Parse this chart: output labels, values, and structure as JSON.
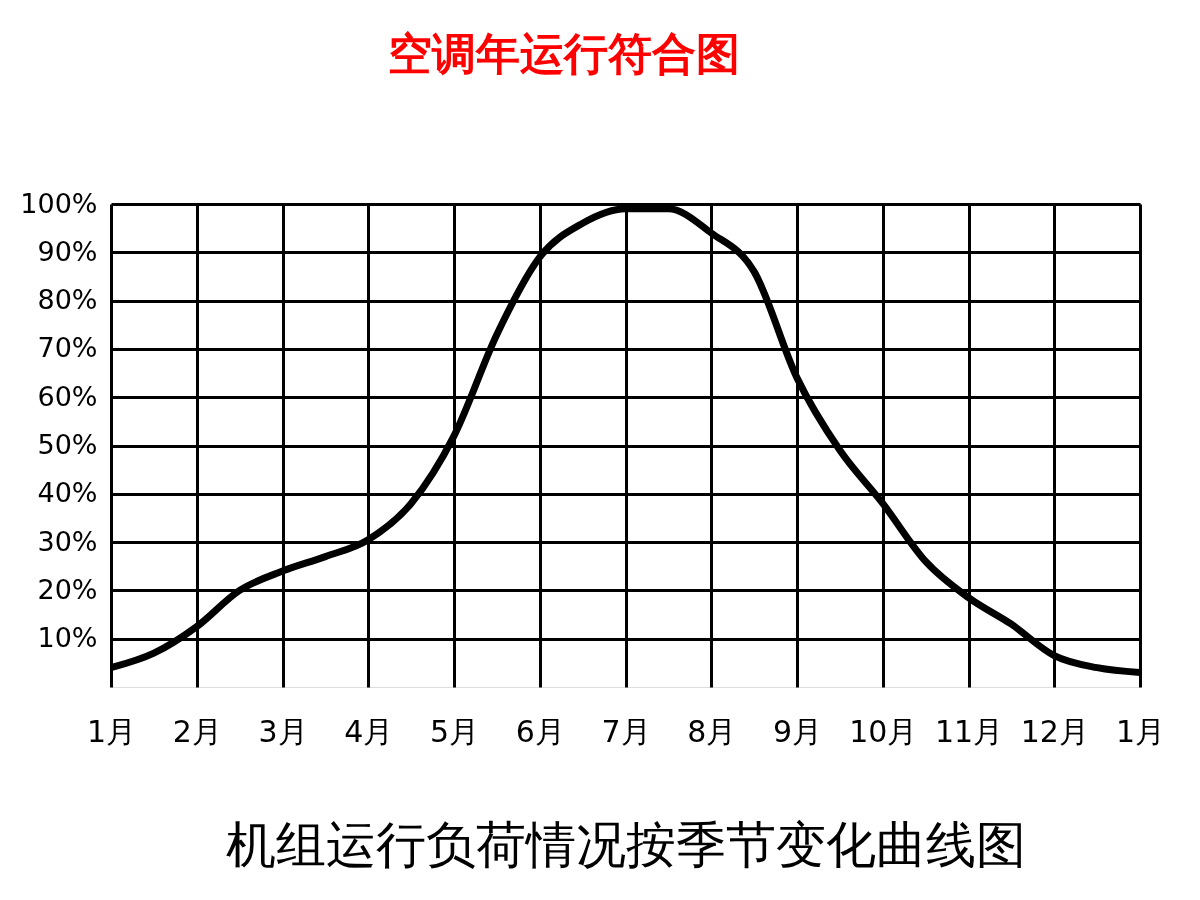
{
  "chart_data": {
    "type": "line",
    "title": "空调年运行符合图",
    "xlabel": "机组运行负荷情况按季节变化曲线图",
    "categories": [
      "1月",
      null,
      "2月",
      null,
      "3月",
      null,
      "4月",
      null,
      "5月",
      null,
      "6月",
      null,
      "7月",
      null,
      "8月",
      null,
      "9月",
      null,
      "10月",
      null,
      "11月",
      null,
      "12月",
      null,
      "1月"
    ],
    "series": [
      {
        "color": "#000000",
        "values": [
          4,
          7,
          12.5,
          20,
          24,
          27,
          30.5,
          38,
          52,
          73,
          89,
          96,
          99,
          99,
          94,
          86,
          64,
          49,
          38,
          26,
          18.5,
          13,
          6.5,
          4,
          3
        ]
      }
    ],
    "ylim": [
      0,
      100
    ],
    "yticks": [
      {
        "value": 10,
        "label": "10%"
      },
      {
        "value": 20,
        "label": "20%"
      },
      {
        "value": 30,
        "label": "30%"
      },
      {
        "value": 40,
        "label": "40%"
      },
      {
        "value": 50,
        "label": "50%"
      },
      {
        "value": 60,
        "label": "60%"
      },
      {
        "value": 70,
        "label": "70%"
      },
      {
        "value": 80,
        "label": "80%"
      },
      {
        "value": 90,
        "label": "90%"
      },
      {
        "value": 100,
        "label": "100%"
      }
    ],
    "grid": true,
    "line_style": "solid"
  }
}
